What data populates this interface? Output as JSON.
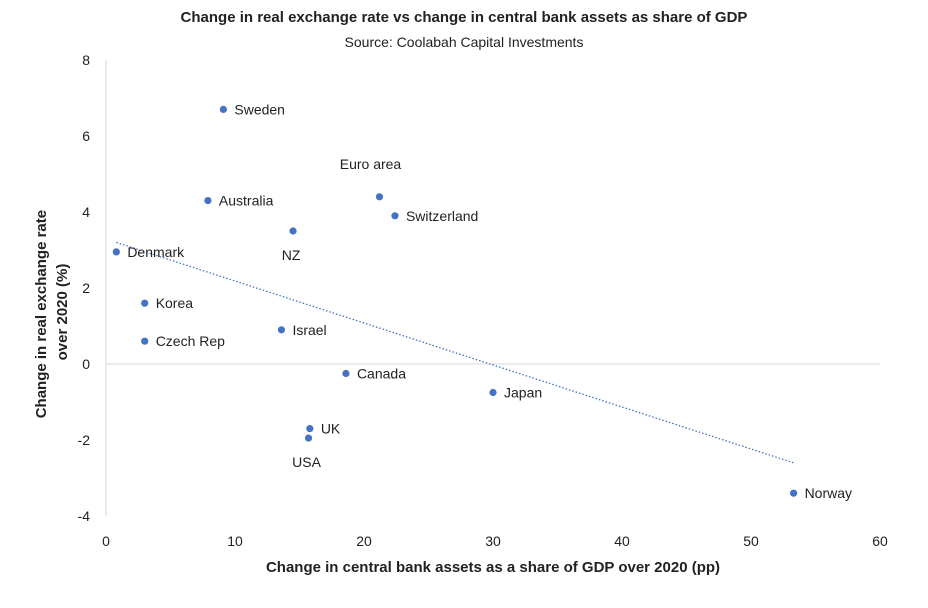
{
  "chart_data": {
    "type": "scatter",
    "title": "Change in real exchange rate vs change in central bank assets as share of GDP",
    "subtitle": "Source: Coolabah Capital Investments",
    "xlabel": "Change in central bank assets as a share of GDP over 2020 (pp)",
    "ylabel_lines": [
      "Change in real exchange rate",
      "over 2020 (%)"
    ],
    "xlim": [
      0,
      60
    ],
    "ylim": [
      -4,
      8
    ],
    "xticks": [
      0,
      10,
      20,
      30,
      40,
      50,
      60
    ],
    "yticks": [
      -4,
      -2,
      0,
      2,
      4,
      6,
      8
    ],
    "point_color": "#4472C4",
    "trendline_color": "#4472C4",
    "points": [
      {
        "name": "Sweden",
        "x": 9.1,
        "y": 6.7,
        "label_pos": "right"
      },
      {
        "name": "Euro area",
        "x": 21.2,
        "y": 4.4,
        "label_pos": "above-left"
      },
      {
        "name": "Australia",
        "x": 7.9,
        "y": 4.3,
        "label_pos": "right"
      },
      {
        "name": "Switzerland",
        "x": 22.4,
        "y": 3.9,
        "label_pos": "right"
      },
      {
        "name": "NZ",
        "x": 14.5,
        "y": 3.5,
        "label_pos": "below"
      },
      {
        "name": "Denmark",
        "x": 0.8,
        "y": 2.95,
        "label_pos": "right"
      },
      {
        "name": "Korea",
        "x": 3.0,
        "y": 1.6,
        "label_pos": "right"
      },
      {
        "name": "Israel",
        "x": 13.6,
        "y": 0.9,
        "label_pos": "right"
      },
      {
        "name": "Czech Rep",
        "x": 3.0,
        "y": 0.6,
        "label_pos": "right"
      },
      {
        "name": "Canada",
        "x": 18.6,
        "y": -0.25,
        "label_pos": "right"
      },
      {
        "name": "Japan",
        "x": 30.0,
        "y": -0.75,
        "label_pos": "right"
      },
      {
        "name": "UK",
        "x": 15.8,
        "y": -1.7,
        "label_pos": "right"
      },
      {
        "name": "USA",
        "x": 15.7,
        "y": -1.95,
        "label_pos": "below"
      },
      {
        "name": "Norway",
        "x": 53.3,
        "y": -3.4,
        "label_pos": "right"
      }
    ],
    "trendline": {
      "type": "linear",
      "x": [
        0.8,
        53.3
      ],
      "y": [
        3.2,
        -2.6
      ],
      "style": "dotted"
    },
    "grid": false
  }
}
